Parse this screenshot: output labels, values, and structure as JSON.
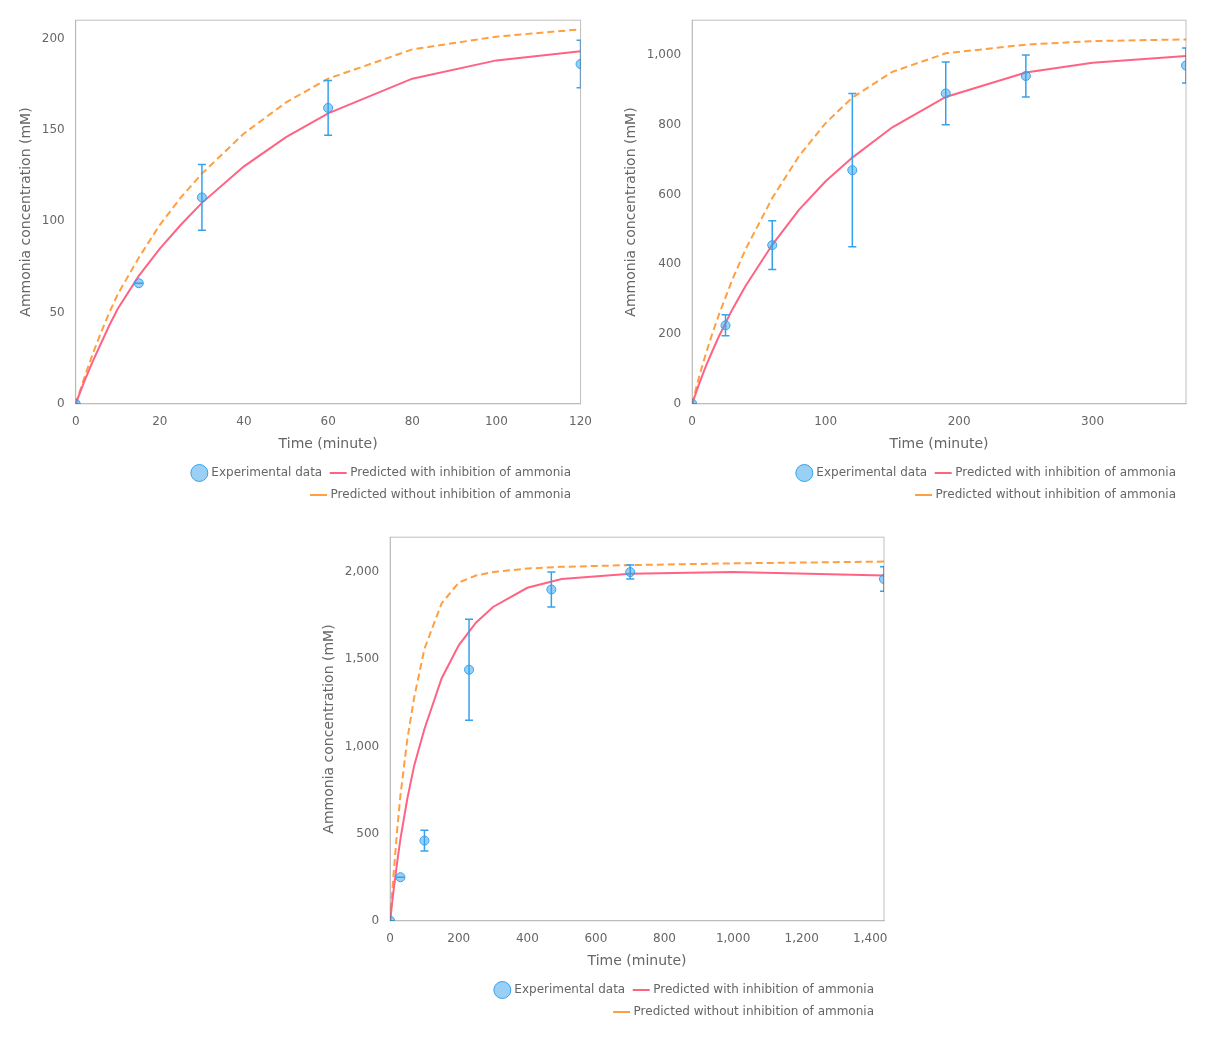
{
  "chart_data": [
    {
      "type": "scatter",
      "x_label": "Time (minute)",
      "y_label": "Ammonia concentration (mM)",
      "xlim": [
        0,
        120
      ],
      "ylim": [
        0,
        210
      ],
      "xticks": [
        0,
        20,
        40,
        60,
        80,
        100,
        120
      ],
      "yticks": [
        0,
        50,
        100,
        150,
        200
      ],
      "grid": false,
      "legend": "lower right",
      "series": [
        {
          "name": "Experimental data",
          "type": "scatter",
          "marker": "circle",
          "x": [
            0,
            15,
            30,
            60,
            120
          ],
          "values": [
            0,
            66,
            113,
            162,
            186
          ],
          "error": [
            0,
            0,
            18,
            15,
            13
          ]
        },
        {
          "name": "Predicted with inhibition of ammonia",
          "type": "line",
          "line_style": "solid",
          "x": [
            0,
            2,
            4,
            6,
            8,
            10,
            15,
            20,
            25,
            30,
            40,
            50,
            60,
            80,
            100,
            120
          ],
          "values": [
            0,
            12,
            23,
            33,
            43,
            52,
            70,
            85,
            98,
            110,
            130,
            146,
            159,
            178,
            188,
            193
          ]
        },
        {
          "name": "Predicted without inhibition of ammonia",
          "type": "line",
          "line_style": "dashed",
          "x": [
            0,
            2,
            4,
            6,
            8,
            10,
            15,
            20,
            25,
            30,
            40,
            50,
            60,
            80,
            100,
            120
          ],
          "values": [
            0,
            14,
            27,
            39,
            50,
            60,
            80,
            98,
            113,
            126,
            148,
            165,
            178,
            194,
            201,
            205
          ]
        }
      ]
    },
    {
      "type": "scatter",
      "x_label": "Time (minute)",
      "y_label": "Ammonia concentration (mM)",
      "xlim": [
        0,
        370
      ],
      "ylim": [
        0,
        1100
      ],
      "xticks": [
        0,
        100,
        200,
        300
      ],
      "yticks": [
        0,
        200,
        400,
        600,
        800,
        1000
      ],
      "grid": false,
      "legend": "lower right",
      "series": [
        {
          "name": "Experimental data",
          "type": "scatter",
          "marker": "circle",
          "x": [
            0,
            25,
            60,
            120,
            190,
            250,
            370
          ],
          "values": [
            0,
            225,
            455,
            670,
            890,
            940,
            970
          ],
          "error": [
            0,
            30,
            70,
            220,
            90,
            60,
            50
          ]
        },
        {
          "name": "Predicted with inhibition of ammonia",
          "type": "line",
          "line_style": "solid",
          "x": [
            0,
            5,
            10,
            15,
            20,
            30,
            40,
            60,
            80,
            100,
            120,
            150,
            190,
            250,
            300,
            370
          ],
          "values": [
            0,
            55,
            105,
            150,
            193,
            270,
            338,
            456,
            556,
            638,
            706,
            793,
            880,
            950,
            978,
            997
          ]
        },
        {
          "name": "Predicted without inhibition of ammonia",
          "type": "line",
          "line_style": "dashed",
          "x": [
            0,
            5,
            10,
            15,
            20,
            30,
            40,
            60,
            80,
            100,
            120,
            150,
            190,
            250,
            300,
            370
          ],
          "values": [
            0,
            75,
            140,
            200,
            255,
            355,
            443,
            590,
            710,
            805,
            878,
            952,
            1005,
            1030,
            1040,
            1045
          ]
        }
      ]
    },
    {
      "type": "scatter",
      "x_label": "Time (minute)",
      "y_label": "Ammonia concentration (mM)",
      "xlim": [
        0,
        1440
      ],
      "ylim": [
        0,
        2200
      ],
      "xticks": [
        0,
        200,
        400,
        600,
        800,
        1000,
        1200,
        1400
      ],
      "yticks": [
        0,
        500,
        1000,
        1500,
        2000
      ],
      "grid": false,
      "legend": "lower right",
      "series": [
        {
          "name": "Experimental data",
          "type": "scatter",
          "marker": "circle",
          "x": [
            0,
            30,
            100,
            230,
            470,
            700,
            1440
          ],
          "values": [
            0,
            250,
            460,
            1440,
            1900,
            2000,
            1960
          ],
          "error": [
            0,
            0,
            60,
            290,
            100,
            40,
            70
          ]
        },
        {
          "name": "Predicted with inhibition of ammonia",
          "type": "line",
          "line_style": "solid",
          "x": [
            0,
            5,
            10,
            20,
            30,
            50,
            70,
            100,
            150,
            200,
            250,
            300,
            400,
            500,
            700,
            1000,
            1440
          ],
          "values": [
            0,
            90,
            175,
            330,
            470,
            700,
            890,
            1100,
            1390,
            1580,
            1710,
            1800,
            1910,
            1960,
            1990,
            2000,
            1980
          ]
        },
        {
          "name": "Predicted without inhibition of ammonia",
          "type": "line",
          "line_style": "dashed",
          "x": [
            0,
            5,
            10,
            20,
            30,
            50,
            70,
            100,
            150,
            200,
            250,
            300,
            400,
            500,
            700,
            1000,
            1440
          ],
          "values": [
            0,
            140,
            270,
            510,
            720,
            1040,
            1280,
            1560,
            1820,
            1940,
            1980,
            2000,
            2020,
            2030,
            2040,
            2050,
            2060
          ]
        }
      ]
    }
  ]
}
